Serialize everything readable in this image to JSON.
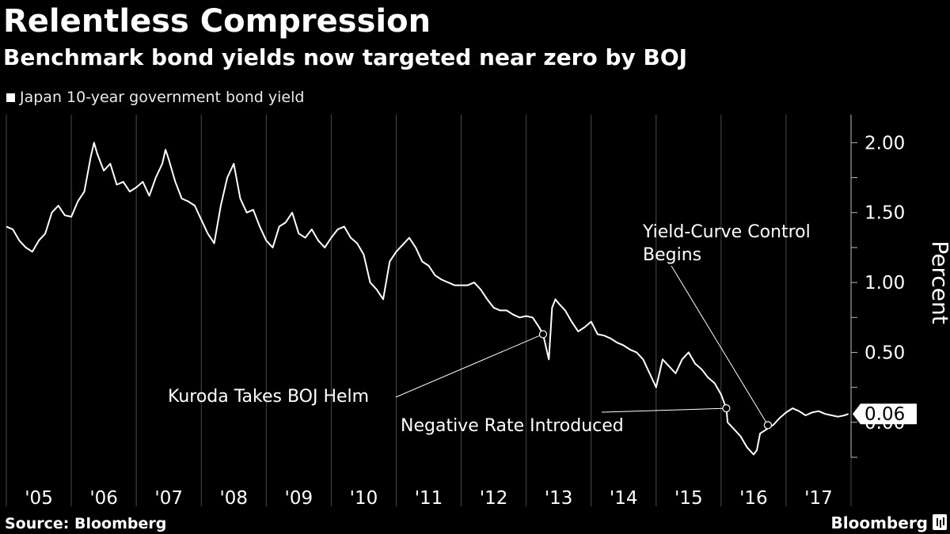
{
  "header": {
    "title": "Relentless Compression",
    "subtitle": "Benchmark bond yields now targeted near zero by BOJ"
  },
  "footer": {
    "source": "Source: Bloomberg",
    "brand": "Bloomberg"
  },
  "colors": {
    "background": "#000000",
    "line": "#ffffff",
    "grid": "#4a4a4a"
  },
  "chart_data": {
    "type": "line",
    "title": "Relentless Compression",
    "subtitle": "Benchmark bond yields now targeted near zero by BOJ",
    "xlabel": "",
    "ylabel": "Percent",
    "ylim": [
      -0.25,
      2.2
    ],
    "xlim": [
      2005.0,
      2018.0
    ],
    "yticks": [
      0.0,
      0.5,
      1.0,
      1.5,
      2.0
    ],
    "ytick_labels": [
      "0.00",
      "0.50",
      "1.00",
      "1.50",
      "2.00"
    ],
    "xtick_labels": [
      "'05",
      "'06",
      "'07",
      "'08",
      "'09",
      "'10",
      "'11",
      "'12",
      "'13",
      "'14",
      "'15",
      "'16",
      "'17"
    ],
    "grid": "vertical",
    "legend_position": "top-left",
    "last_value_label": "0.06",
    "series": [
      {
        "name": "Japan 10-year government bond yield",
        "x": [
          2005.0,
          2005.1,
          2005.2,
          2005.3,
          2005.4,
          2005.5,
          2005.6,
          2005.7,
          2005.8,
          2005.9,
          2006.0,
          2006.1,
          2006.2,
          2006.3,
          2006.35,
          2006.4,
          2006.5,
          2006.6,
          2006.7,
          2006.8,
          2006.9,
          2007.0,
          2007.1,
          2007.2,
          2007.3,
          2007.4,
          2007.45,
          2007.5,
          2007.6,
          2007.7,
          2007.8,
          2007.9,
          2008.0,
          2008.1,
          2008.2,
          2008.3,
          2008.4,
          2008.5,
          2008.6,
          2008.7,
          2008.8,
          2008.9,
          2009.0,
          2009.1,
          2009.2,
          2009.3,
          2009.4,
          2009.5,
          2009.6,
          2009.7,
          2009.8,
          2009.9,
          2010.0,
          2010.1,
          2010.2,
          2010.3,
          2010.4,
          2010.5,
          2010.6,
          2010.7,
          2010.8,
          2010.9,
          2011.0,
          2011.1,
          2011.2,
          2011.3,
          2011.4,
          2011.5,
          2011.6,
          2011.7,
          2011.8,
          2011.9,
          2012.0,
          2012.1,
          2012.2,
          2012.3,
          2012.4,
          2012.5,
          2012.6,
          2012.7,
          2012.8,
          2012.9,
          2013.0,
          2013.1,
          2013.2,
          2013.26,
          2013.3,
          2013.35,
          2013.4,
          2013.45,
          2013.5,
          2013.6,
          2013.7,
          2013.8,
          2013.9,
          2014.0,
          2014.1,
          2014.2,
          2014.3,
          2014.4,
          2014.5,
          2014.6,
          2014.7,
          2014.8,
          2014.9,
          2015.0,
          2015.05,
          2015.1,
          2015.2,
          2015.3,
          2015.4,
          2015.5,
          2015.6,
          2015.7,
          2015.8,
          2015.9,
          2016.0,
          2016.08,
          2016.1,
          2016.2,
          2016.3,
          2016.4,
          2016.5,
          2016.55,
          2016.6,
          2016.7,
          2016.72,
          2016.8,
          2016.9,
          2017.0,
          2017.1,
          2017.2,
          2017.3,
          2017.4,
          2017.5,
          2017.6,
          2017.7,
          2017.8,
          2017.9,
          2017.96
        ],
        "values": [
          1.4,
          1.38,
          1.3,
          1.25,
          1.22,
          1.3,
          1.35,
          1.5,
          1.55,
          1.48,
          1.47,
          1.58,
          1.65,
          1.9,
          2.0,
          1.92,
          1.8,
          1.85,
          1.7,
          1.72,
          1.65,
          1.68,
          1.72,
          1.62,
          1.75,
          1.85,
          1.95,
          1.88,
          1.72,
          1.6,
          1.58,
          1.55,
          1.45,
          1.35,
          1.28,
          1.55,
          1.75,
          1.85,
          1.6,
          1.5,
          1.52,
          1.4,
          1.3,
          1.25,
          1.4,
          1.43,
          1.5,
          1.35,
          1.32,
          1.38,
          1.3,
          1.25,
          1.32,
          1.38,
          1.4,
          1.32,
          1.28,
          1.2,
          1.0,
          0.95,
          0.88,
          1.15,
          1.22,
          1.27,
          1.32,
          1.25,
          1.15,
          1.12,
          1.05,
          1.02,
          1.0,
          0.98,
          0.98,
          0.98,
          1.0,
          0.95,
          0.88,
          0.82,
          0.8,
          0.8,
          0.77,
          0.75,
          0.76,
          0.75,
          0.68,
          0.63,
          0.55,
          0.45,
          0.82,
          0.88,
          0.85,
          0.8,
          0.72,
          0.65,
          0.68,
          0.72,
          0.63,
          0.62,
          0.6,
          0.57,
          0.55,
          0.52,
          0.5,
          0.45,
          0.35,
          0.25,
          0.35,
          0.45,
          0.4,
          0.35,
          0.45,
          0.5,
          0.42,
          0.38,
          0.32,
          0.28,
          0.2,
          0.1,
          0.0,
          -0.05,
          -0.1,
          -0.18,
          -0.23,
          -0.2,
          -0.08,
          -0.05,
          -0.04,
          -0.02,
          0.03,
          0.07,
          0.1,
          0.08,
          0.05,
          0.07,
          0.08,
          0.06,
          0.05,
          0.04,
          0.05,
          0.06
        ]
      }
    ],
    "annotations": [
      {
        "text": "Kuroda Takes BOJ Helm",
        "x": 2013.26,
        "y": 0.63
      },
      {
        "text": "Negative Rate Introduced",
        "x": 2016.08,
        "y": 0.1
      },
      {
        "text": [
          "Yield-Curve Control",
          "Begins"
        ],
        "x": 2016.72,
        "y": -0.02
      }
    ]
  }
}
